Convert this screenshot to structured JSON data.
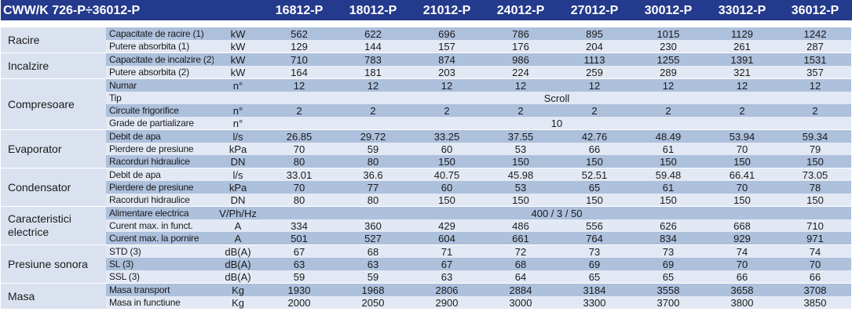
{
  "table": {
    "title": "CWW/K 726-P÷36012-P",
    "models": [
      "16812-P",
      "18012-P",
      "21012-P",
      "24012-P",
      "27012-P",
      "30012-P",
      "33012-P",
      "36012-P"
    ],
    "groups": [
      {
        "name": "Racire",
        "rows": [
          {
            "param": "Capacitate de racire (1)",
            "unit": "kW",
            "values": [
              "562",
              "622",
              "696",
              "786",
              "895",
              "1015",
              "1129",
              "1242"
            ]
          },
          {
            "param": "Putere absorbita (1)",
            "unit": "kW",
            "values": [
              "129",
              "144",
              "157",
              "176",
              "204",
              "230",
              "261",
              "287"
            ]
          }
        ]
      },
      {
        "name": "Incalzire",
        "rows": [
          {
            "param": "Capacitate de incalzire (2)",
            "unit": "kW",
            "values": [
              "710",
              "783",
              "874",
              "986",
              "1113",
              "1255",
              "1391",
              "1531"
            ]
          },
          {
            "param": "Putere absorbita (2)",
            "unit": "kW",
            "values": [
              "164",
              "181",
              "203",
              "224",
              "259",
              "289",
              "321",
              "357"
            ]
          }
        ]
      },
      {
        "name": "Compresoare",
        "rows": [
          {
            "param": "Numar",
            "unit": "n°",
            "values": [
              "12",
              "12",
              "12",
              "12",
              "12",
              "12",
              "12",
              "12"
            ]
          },
          {
            "param": "Tip",
            "unit": "",
            "span": "Scroll"
          },
          {
            "param": "Circuite frigorifice",
            "unit": "n°",
            "values": [
              "2",
              "2",
              "2",
              "2",
              "2",
              "2",
              "2",
              "2"
            ]
          },
          {
            "param": "Grade de partializare",
            "unit": "n°",
            "span": "10"
          }
        ]
      },
      {
        "name": "Evaporator",
        "rows": [
          {
            "param": "Debit de apa",
            "unit": "l/s",
            "values": [
              "26.85",
              "29.72",
              "33.25",
              "37.55",
              "42.76",
              "48.49",
              "53.94",
              "59.34"
            ]
          },
          {
            "param": "Pierdere de presiune",
            "unit": "kPa",
            "values": [
              "70",
              "59",
              "60",
              "53",
              "66",
              "61",
              "70",
              "79"
            ]
          },
          {
            "param": "Racorduri hidraulice",
            "unit": "DN",
            "values": [
              "80",
              "80",
              "150",
              "150",
              "150",
              "150",
              "150",
              "150"
            ]
          }
        ]
      },
      {
        "name": "Condensator",
        "rows": [
          {
            "param": "Debit de apa",
            "unit": "l/s",
            "values": [
              "33.01",
              "36.6",
              "40.75",
              "45.98",
              "52.51",
              "59.48",
              "66.41",
              "73.05"
            ]
          },
          {
            "param": "Pierdere de presiune",
            "unit": "kPa",
            "values": [
              "70",
              "77",
              "60",
              "53",
              "65",
              "61",
              "70",
              "78"
            ]
          },
          {
            "param": "Racorduri hidraulice",
            "unit": "DN",
            "values": [
              "80",
              "80",
              "150",
              "150",
              "150",
              "150",
              "150",
              "150"
            ]
          }
        ]
      },
      {
        "name": "Caracteristici electrice",
        "rows": [
          {
            "param": "Alimentare electrica",
            "unit": "V/Ph/Hz",
            "span": "400 / 3 / 50"
          },
          {
            "param": "Curent max. in funct.",
            "unit": "A",
            "values": [
              "334",
              "360",
              "429",
              "486",
              "556",
              "626",
              "668",
              "710"
            ]
          },
          {
            "param": "Curent max. la pornire",
            "unit": "A",
            "values": [
              "501",
              "527",
              "604",
              "661",
              "764",
              "834",
              "929",
              "971"
            ]
          }
        ]
      },
      {
        "name": "Presiune sonora",
        "rows": [
          {
            "param": "STD (3)",
            "unit": "dB(A)",
            "values": [
              "67",
              "68",
              "71",
              "72",
              "73",
              "73",
              "74",
              "74"
            ]
          },
          {
            "param": "SL (3)",
            "unit": "dB(A)",
            "values": [
              "63",
              "63",
              "67",
              "68",
              "69",
              "69",
              "70",
              "70"
            ]
          },
          {
            "param": "SSL (3)",
            "unit": "dB(A)",
            "values": [
              "59",
              "59",
              "63",
              "64",
              "65",
              "65",
              "66",
              "66"
            ]
          }
        ]
      },
      {
        "name": "Masa",
        "rows": [
          {
            "param": "Masa transport",
            "unit": "Kg",
            "values": [
              "1930",
              "1968",
              "2806",
              "2884",
              "3184",
              "3558",
              "3658",
              "3708"
            ]
          },
          {
            "param": "Masa in functiune",
            "unit": "Kg",
            "values": [
              "2000",
              "2050",
              "2900",
              "3000",
              "3300",
              "3700",
              "3800",
              "3850"
            ]
          }
        ]
      }
    ]
  }
}
